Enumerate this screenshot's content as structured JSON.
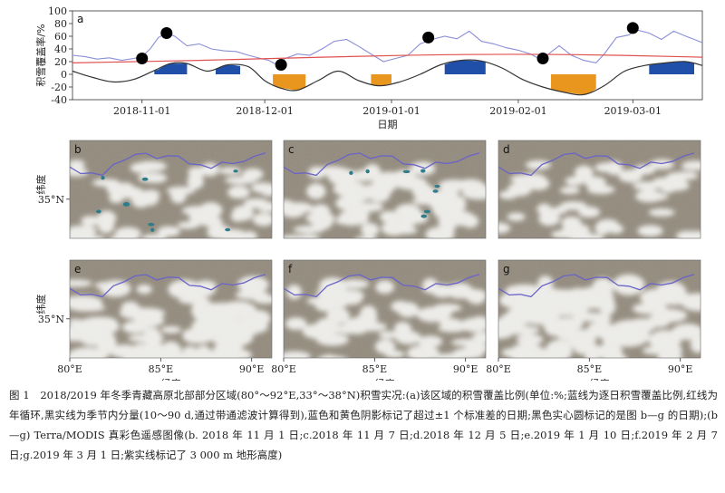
{
  "chart_data": {
    "type": "line",
    "panel_label": "a",
    "ylabel": "积雪覆盖率/%",
    "xlabel": "日期",
    "ylim": [
      -40,
      100
    ],
    "yticks": [
      -40,
      -20,
      0,
      20,
      40,
      60,
      80,
      100
    ],
    "x_range": [
      "2018-10-15",
      "2019-03-18"
    ],
    "xticks": [
      "2018-11-01",
      "2018-12-01",
      "2019-01-01",
      "2019-02-01",
      "2019-03-01"
    ],
    "series": [
      {
        "kind": "daily",
        "color": "#8a8fd6",
        "x": [
          "2018-10-15",
          "2018-10-18",
          "2018-10-21",
          "2018-10-24",
          "2018-10-27",
          "2018-10-30",
          "2018-11-01",
          "2018-11-03",
          "2018-11-05",
          "2018-11-07",
          "2018-11-09",
          "2018-11-12",
          "2018-11-15",
          "2018-11-18",
          "2018-11-21",
          "2018-11-24",
          "2018-11-27",
          "2018-11-30",
          "2018-12-02",
          "2018-12-04",
          "2018-12-06",
          "2018-12-09",
          "2018-12-12",
          "2018-12-15",
          "2018-12-18",
          "2018-12-21",
          "2018-12-24",
          "2018-12-27",
          "2018-12-30",
          "2019-01-02",
          "2019-01-05",
          "2019-01-08",
          "2019-01-11",
          "2019-01-14",
          "2019-01-17",
          "2019-01-20",
          "2019-01-23",
          "2019-01-26",
          "2019-01-29",
          "2019-02-01",
          "2019-02-04",
          "2019-02-06",
          "2019-02-08",
          "2019-02-11",
          "2019-02-14",
          "2019-02-17",
          "2019-02-20",
          "2019-02-22",
          "2019-02-25",
          "2019-02-28",
          "2019-03-02",
          "2019-03-05",
          "2019-03-08",
          "2019-03-11",
          "2019-03-14",
          "2019-03-18"
        ],
        "values": [
          30,
          28,
          24,
          26,
          22,
          25,
          28,
          40,
          58,
          65,
          60,
          45,
          48,
          40,
          37,
          36,
          30,
          25,
          22,
          15,
          25,
          32,
          30,
          40,
          52,
          55,
          44,
          32,
          20,
          25,
          30,
          48,
          55,
          60,
          56,
          68,
          52,
          48,
          42,
          38,
          32,
          25,
          30,
          45,
          30,
          22,
          18,
          32,
          58,
          62,
          70,
          65,
          55,
          68,
          60,
          50
        ]
      },
      {
        "kind": "annual_cycle",
        "color": "#e05050",
        "x": [
          "2018-10-15",
          "2018-11-15",
          "2018-12-15",
          "2019-01-15",
          "2019-02-15",
          "2019-03-18"
        ],
        "values": [
          18,
          22,
          27,
          31,
          31,
          27
        ]
      },
      {
        "kind": "intraseasonal",
        "color": "#333333",
        "x": [
          "2018-10-15",
          "2018-10-20",
          "2018-10-25",
          "2018-10-30",
          "2018-11-04",
          "2018-11-08",
          "2018-11-12",
          "2018-11-17",
          "2018-11-22",
          "2018-11-27",
          "2018-12-01",
          "2018-12-05",
          "2018-12-09",
          "2018-12-14",
          "2018-12-19",
          "2018-12-24",
          "2018-12-29",
          "2019-01-03",
          "2019-01-08",
          "2019-01-13",
          "2019-01-18",
          "2019-01-23",
          "2019-01-28",
          "2019-02-02",
          "2019-02-07",
          "2019-02-12",
          "2019-02-17",
          "2019-02-22",
          "2019-02-27",
          "2019-03-04",
          "2019-03-09",
          "2019-03-14",
          "2019-03-18"
        ],
        "values": [
          5,
          -5,
          -12,
          -8,
          6,
          17,
          17,
          5,
          15,
          12,
          -10,
          -22,
          -25,
          -10,
          5,
          -10,
          -18,
          -12,
          0,
          15,
          22,
          21,
          10,
          -8,
          -20,
          -28,
          -32,
          -18,
          5,
          14,
          18,
          20,
          14
        ]
      }
    ],
    "shading": [
      {
        "color": "#1f4fa8",
        "from": "2018-11-04",
        "to": "2018-11-12"
      },
      {
        "color": "#1f4fa8",
        "from": "2018-11-19",
        "to": "2018-11-25"
      },
      {
        "color": "#1f4fa8",
        "from": "2019-01-14",
        "to": "2019-01-24"
      },
      {
        "color": "#1f4fa8",
        "from": "2019-03-05",
        "to": "2019-03-16"
      },
      {
        "color": "#e8961e",
        "from": "2018-12-03",
        "to": "2018-12-11"
      },
      {
        "color": "#e8961e",
        "from": "2018-12-27",
        "to": "2019-01-01"
      },
      {
        "color": "#e8961e",
        "from": "2019-02-09",
        "to": "2019-02-20"
      }
    ],
    "markers": [
      {
        "date": "2018-11-01",
        "value": 25
      },
      {
        "date": "2018-11-07",
        "value": 65
      },
      {
        "date": "2018-12-05",
        "value": 15
      },
      {
        "date": "2019-01-10",
        "value": 58
      },
      {
        "date": "2019-02-07",
        "value": 25
      },
      {
        "date": "2019-03-01",
        "value": 73
      }
    ]
  },
  "maps": {
    "panels": [
      {
        "letter": "b"
      },
      {
        "letter": "c"
      },
      {
        "letter": "d"
      },
      {
        "letter": "e"
      },
      {
        "letter": "f"
      },
      {
        "letter": "g"
      }
    ],
    "lat_label": "纬度",
    "lat_tick": "35°N",
    "lon_label": "经度",
    "lon_ticks": [
      "80°E",
      "85°E",
      "90°E"
    ],
    "colors": {
      "land": "#8f8779",
      "snow": "#f4f4f2",
      "contour": "#6a63c8",
      "water": "#2f7d8a"
    }
  },
  "caption": "图 1　2018/2019 年冬季青藏高原北部部分区域(80°～92°E,33°～38°N)积雪实况:(a)该区域的积雪覆盖比例(单位:%;蓝线为逐日积雪覆盖比例,红线为年循环,黑实线为季节内分量(10～90 d,通过带通滤波计算得到),蓝色和黄色阴影标记了超过±1 个标准差的日期;黑色实心圆标记的是图 b—g 的日期);(b—g) Terra/MODIS 真彩色遥感图像(b. 2018 年 11 月 1 日;c.2018 年 11 月 7 日;d.2018 年 12 月 5 日;e.2019 年 1 月 10 日;f.2019 年 2 月 7 日;g.2019 年 3 月 1 日;紫实线标记了 3 000 m 地形高度)"
}
